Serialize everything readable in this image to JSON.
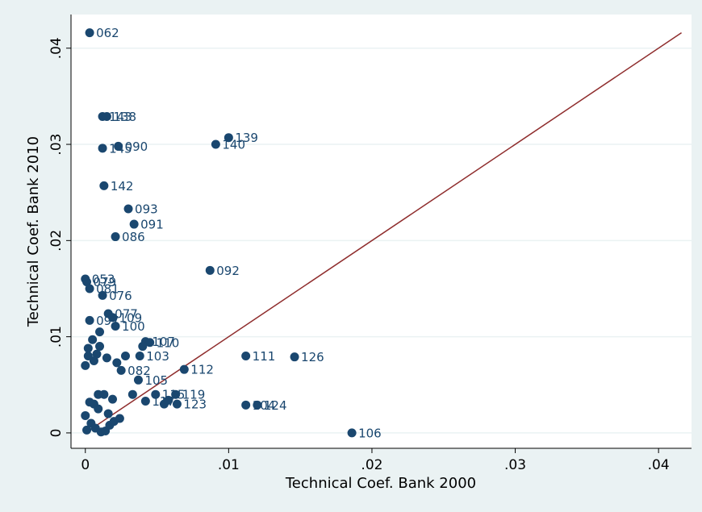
{
  "chart_data": {
    "type": "scatter",
    "x_label": "Technical Coef. Bank 2000",
    "y_label": "Technical Coef. Bank 2010",
    "color": "#1a476f",
    "line_color": "#8f2d2d",
    "grid_color": "#eaf2f3",
    "grid": true,
    "xlim": [
      -0.001,
      0.0423
    ],
    "ylim": [
      -0.0016,
      0.0435
    ],
    "xticks": [
      0,
      {
        "value": 0.01,
        "label": ".01"
      },
      {
        "value": 0.02,
        "label": ".02"
      },
      {
        "value": 0.03,
        "label": ".03"
      },
      {
        "value": 0.04,
        "label": ".04"
      }
    ],
    "yticks": [
      0,
      {
        "value": 0.01,
        "label": ".01"
      },
      {
        "value": 0.02,
        "label": ".02"
      },
      {
        "value": 0.03,
        "label": ".03"
      },
      {
        "value": 0.04,
        "label": ".04"
      }
    ],
    "x": [
      0.0003,
      0.0012,
      0.0015,
      0.01,
      0.0091,
      0.0012,
      0.0023,
      0.0013,
      0.003,
      0.0034,
      0.0021,
      0.0087,
      0.0,
      0.0001,
      0.0003,
      0.0012,
      0.0016,
      0.0019,
      0.0003,
      0.0021,
      0.0042,
      0.0045,
      0.0038,
      0.0112,
      0.0146,
      0.0069,
      0.0037,
      0.0025,
      0.0063,
      0.0064,
      0.0049,
      0.0042,
      0.012,
      0.0112,
      0.0186,
      0.0,
      0.0002,
      0.0005,
      0.0008,
      0.001,
      0.0001,
      0.0004,
      0.0007,
      0.0011,
      0.0014,
      0.0017,
      0.002,
      0.0024,
      0.0006,
      0.0009,
      0.0013,
      0.0016,
      0.0019,
      0.0,
      0.0003,
      0.0006,
      0.001,
      0.0015,
      0.0022,
      0.0028,
      0.0055,
      0.0058,
      0.0033,
      0.004,
      0.0002,
      0.0009
    ],
    "y": [
      0.0416,
      0.0329,
      0.0329,
      0.0307,
      0.03,
      0.0296,
      0.0298,
      0.0257,
      0.0233,
      0.0217,
      0.0204,
      0.0169,
      0.016,
      0.0157,
      0.015,
      0.0143,
      0.0124,
      0.012,
      0.0117,
      0.0111,
      0.0095,
      0.0094,
      0.008,
      0.008,
      0.0079,
      0.0066,
      0.0055,
      0.0065,
      0.004,
      0.003,
      0.004,
      0.0033,
      0.0029,
      0.0029,
      0.0,
      0.007,
      0.0088,
      0.0097,
      0.0082,
      0.0105,
      0.0003,
      0.001,
      0.0005,
      0.0001,
      0.0002,
      0.0008,
      0.0012,
      0.0015,
      0.003,
      0.004,
      0.004,
      0.002,
      0.0035,
      0.0018,
      0.0032,
      0.0075,
      0.009,
      0.0078,
      0.0073,
      0.008,
      0.003,
      0.0034,
      0.004,
      0.009,
      0.008,
      0.0025
    ],
    "labels": [
      "062",
      "143",
      "138",
      "139",
      "140",
      "145",
      "090",
      "142",
      "093",
      "091",
      "086",
      "092",
      "053",
      "079",
      "081",
      "076",
      "077",
      "109",
      "097",
      "100",
      "107",
      "110",
      "103",
      "111",
      "126",
      "112",
      "105",
      "082",
      "119",
      "123",
      "115",
      "117",
      "124",
      "104",
      "106",
      null,
      null,
      null,
      null,
      null,
      null,
      null,
      null,
      null,
      null,
      null,
      null,
      null,
      null,
      null,
      null,
      null,
      null,
      null,
      null,
      null,
      null,
      null,
      null,
      null,
      null,
      null,
      null,
      null,
      null,
      null
    ]
  }
}
